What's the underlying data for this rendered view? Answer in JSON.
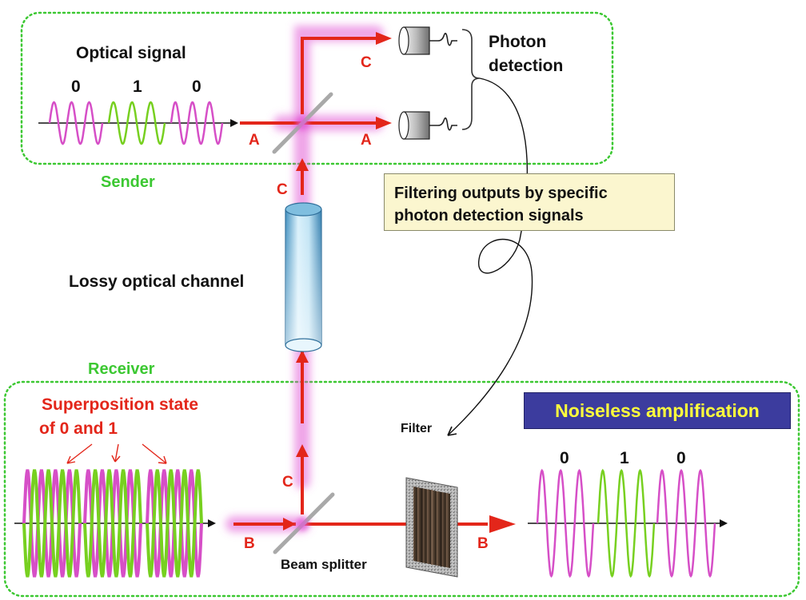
{
  "sender": {
    "group_label": "Sender",
    "signal_title": "Optical signal",
    "bits": [
      "0",
      "1",
      "0"
    ],
    "beam_in": "A",
    "beam_out_right": "A",
    "beam_out_up": "C",
    "detection_label_line1": "Photon",
    "detection_label_line2": "detection"
  },
  "channel": {
    "label": "Lossy optical channel",
    "beam_label": "C"
  },
  "filtering_note": {
    "line1": "Filtering outputs by specific",
    "line2": "photon detection signals"
  },
  "receiver": {
    "group_label": "Receiver",
    "superposition_line1": "Superposition state",
    "superposition_line2": "of 0 and 1",
    "beam_in": "B",
    "beam_up": "C",
    "beam_out": "B",
    "splitter_label": "Beam splitter",
    "filter_label": "Filter",
    "output_bits": [
      "0",
      "1",
      "0"
    ]
  },
  "badge": {
    "text": "Noiseless amplification"
  },
  "colors": {
    "beam": "#e3261a",
    "beam_glow": "#e25ad6",
    "wave_zero": "#d64fc7",
    "wave_one": "#77d020",
    "group_border": "#3cc832",
    "badge_bg": "#3c3c9e",
    "badge_text": "#ffff3c",
    "note_bg": "#fbf6cf"
  }
}
